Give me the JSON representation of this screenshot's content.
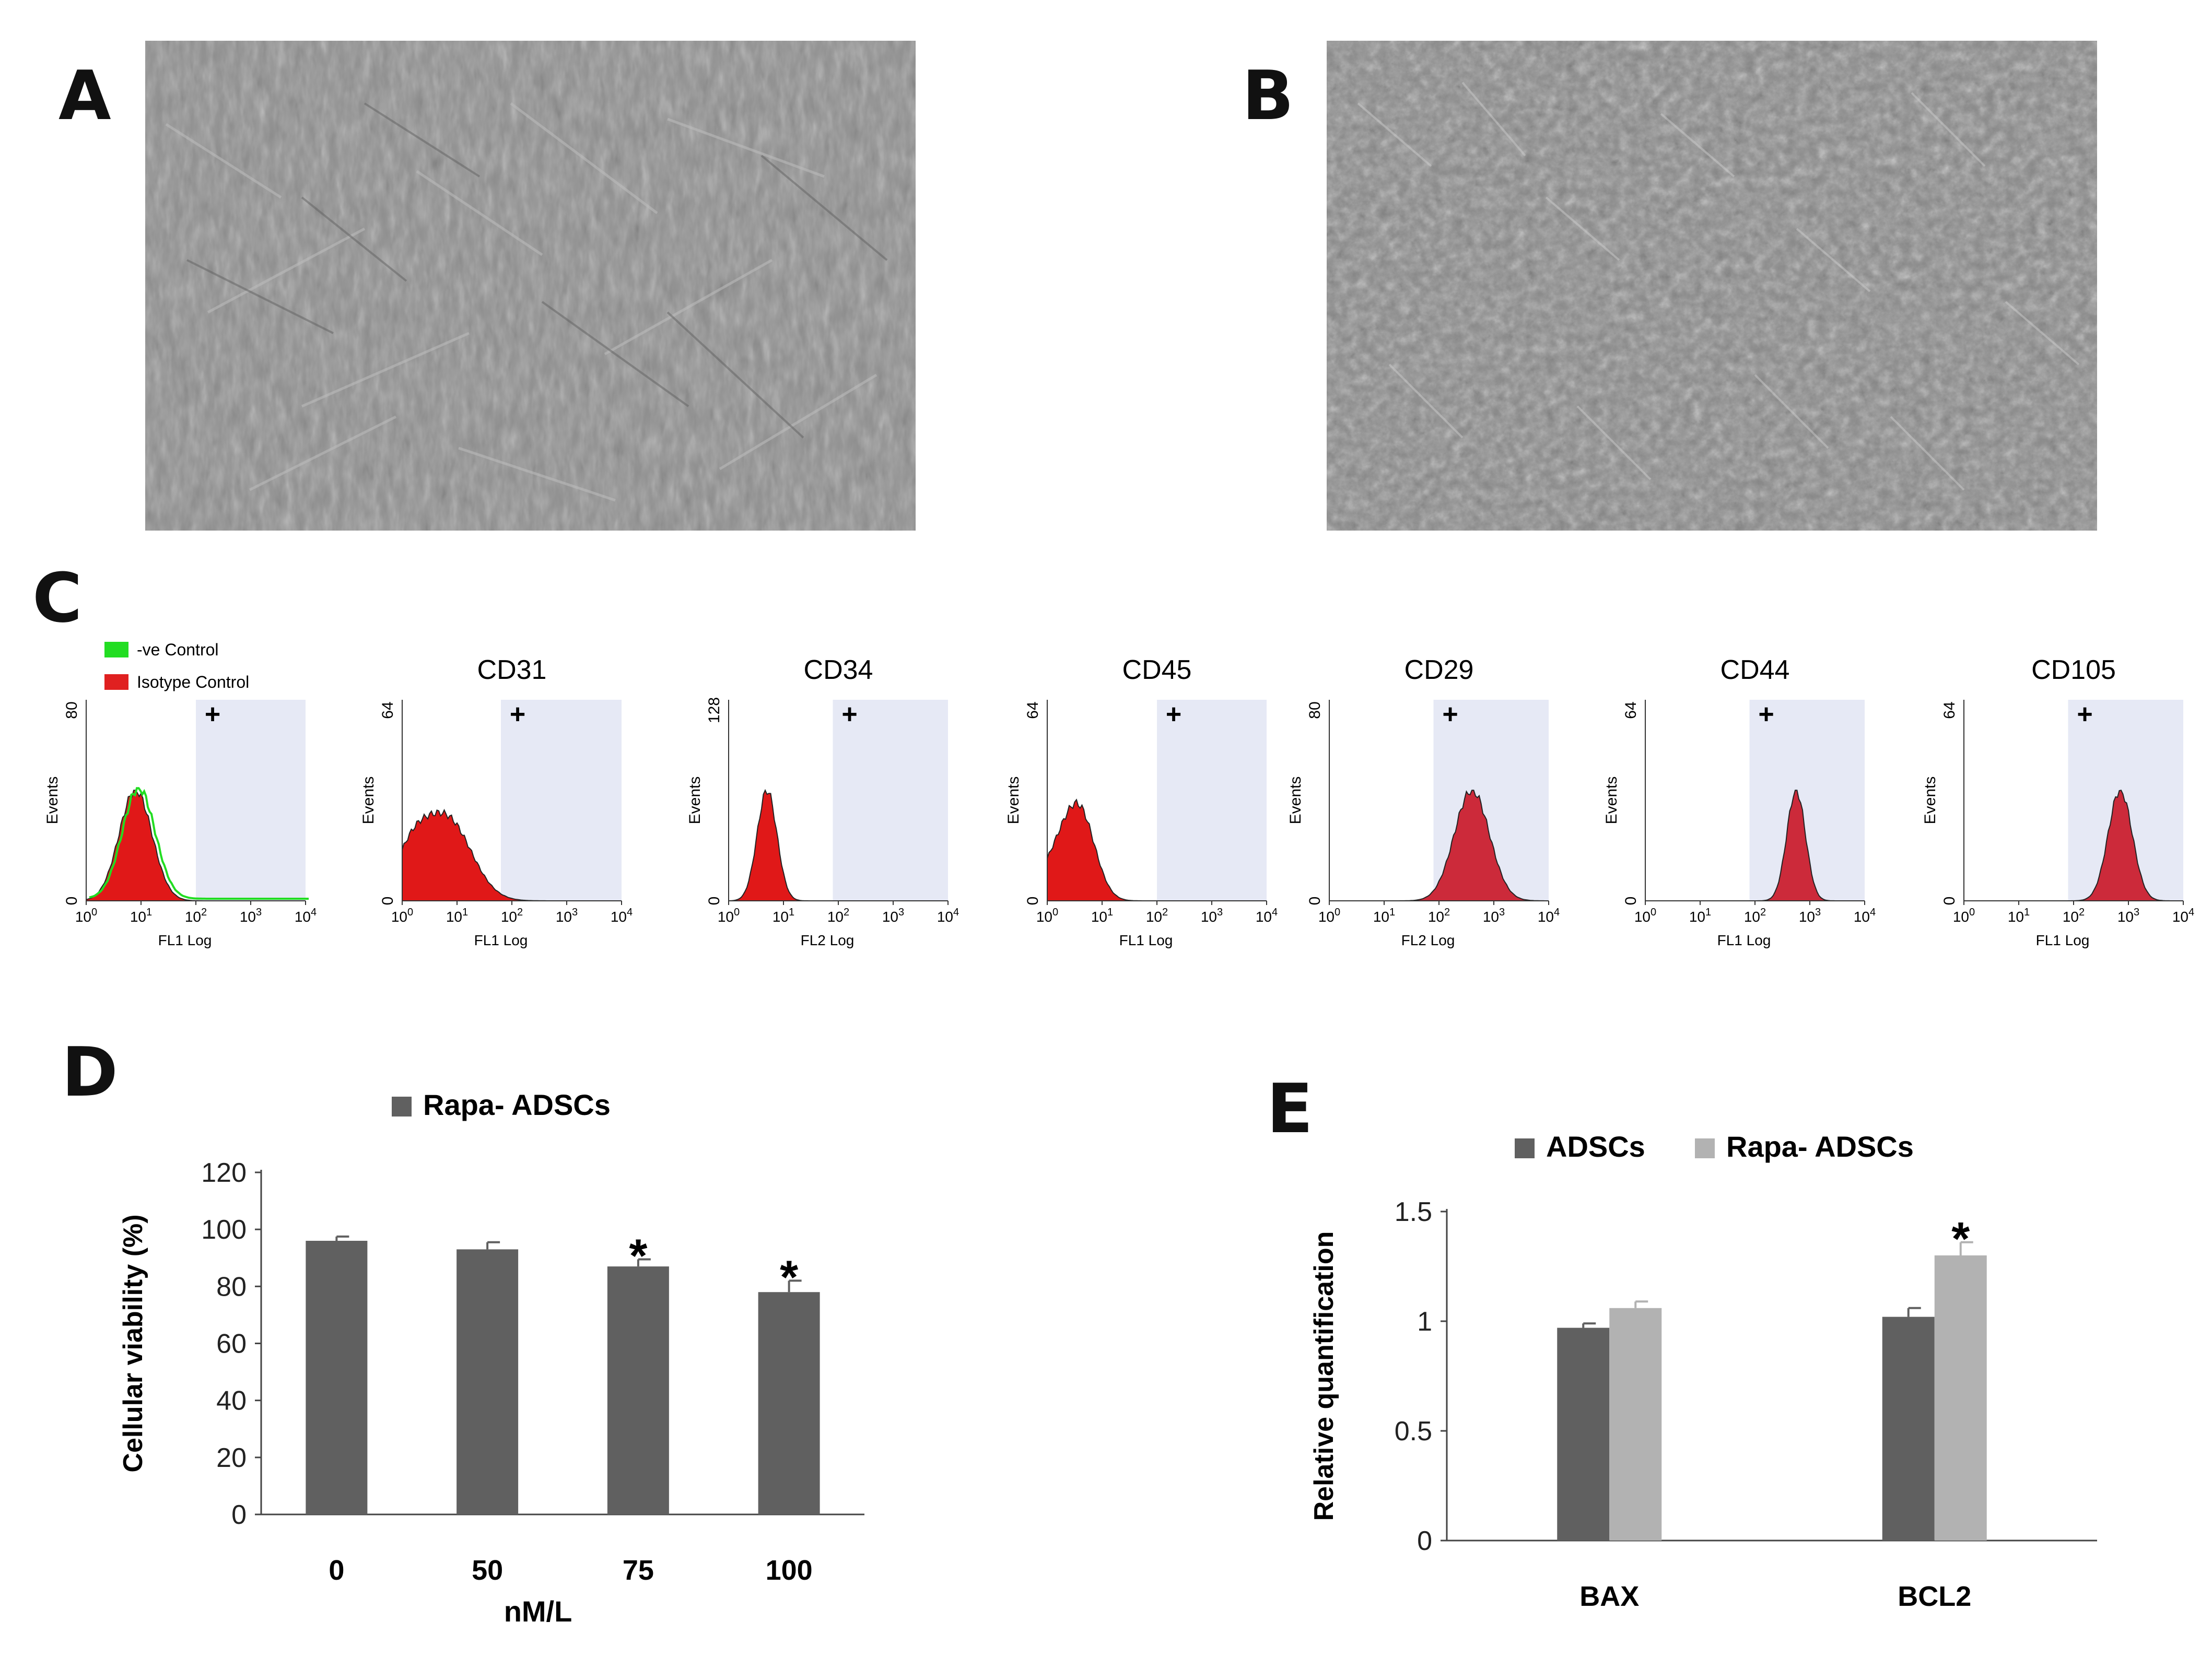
{
  "panels": {
    "a": "A",
    "b": "B",
    "c": "C",
    "d": "D",
    "e": "E"
  },
  "flow": {
    "legend": [
      {
        "label": "-ve Control",
        "color": "#22dd22"
      },
      {
        "label": "Isotype Control",
        "color": "#e02020"
      }
    ],
    "events_label": "Events",
    "plus": "+",
    "plots": [
      {
        "marker": "",
        "ymax": "80",
        "xlabel": "FL1 Log",
        "gate_decade": 2.0,
        "peak_decade": 0.9,
        "width": 0.3,
        "style": "control"
      },
      {
        "marker": "CD31",
        "ymax": "64",
        "xlabel": "FL1 Log",
        "gate_decade": 1.8,
        "peak_decade": 0.8,
        "width": 0.45,
        "style": "broad"
      },
      {
        "marker": "CD34",
        "ymax": "128",
        "xlabel": "FL2 Log",
        "gate_decade": 1.9,
        "peak_decade": 0.7,
        "width": 0.18,
        "style": "narrow"
      },
      {
        "marker": "CD45",
        "ymax": "64",
        "xlabel": "FL1 Log",
        "gate_decade": 2.0,
        "peak_decade": 0.6,
        "width": 0.28,
        "style": "broad"
      },
      {
        "marker": "CD29",
        "ymax": "80",
        "xlabel": "FL2 Log",
        "gate_decade": 1.9,
        "peak_decade": 2.6,
        "width": 0.32,
        "style": "dark"
      },
      {
        "marker": "CD44",
        "ymax": "64",
        "xlabel": "FL1 Log",
        "gate_decade": 1.9,
        "peak_decade": 2.75,
        "width": 0.17,
        "style": "dark"
      },
      {
        "marker": "CD105",
        "ymax": "64",
        "xlabel": "FL1 Log",
        "gate_decade": 1.9,
        "peak_decade": 2.85,
        "width": 0.22,
        "style": "dark"
      }
    ],
    "tick_exponents": [
      "0",
      "1",
      "2",
      "3",
      "4"
    ],
    "tick_base": "10"
  },
  "chart_data": [
    {
      "type": "bar",
      "title": "Rapa- ADSCs",
      "categories": [
        "0",
        "50",
        "75",
        "100"
      ],
      "series": [
        {
          "name": "Rapa- ADSCs",
          "values": [
            96,
            93,
            87,
            78
          ],
          "errors": [
            1.5,
            2.5,
            2.5,
            4
          ],
          "color": "#606060"
        }
      ],
      "significant": [
        false,
        false,
        true,
        true
      ],
      "star": "*",
      "xlabel": "nM/L",
      "ylabel": "Cellular viability (%)",
      "ylim": [
        0,
        120
      ],
      "yticks": [
        "0",
        "20",
        "40",
        "60",
        "80",
        "100",
        "120"
      ]
    },
    {
      "type": "bar",
      "title": "",
      "categories": [
        "BAX",
        "BCL2"
      ],
      "series": [
        {
          "name": "ADSCs",
          "values": [
            0.97,
            1.02
          ],
          "errors": [
            0.02,
            0.04
          ],
          "color": "#606060"
        },
        {
          "name": "Rapa- ADSCs",
          "values": [
            1.06,
            1.3
          ],
          "errors": [
            0.03,
            0.06
          ],
          "color": "#b2b2b2"
        }
      ],
      "significant": [
        false,
        true
      ],
      "star": "*",
      "xlabel": "",
      "ylabel": "Relative quantification",
      "ylim": [
        0,
        1.5
      ],
      "yticks": [
        "0",
        "0.5",
        "1",
        "1.5"
      ]
    }
  ]
}
